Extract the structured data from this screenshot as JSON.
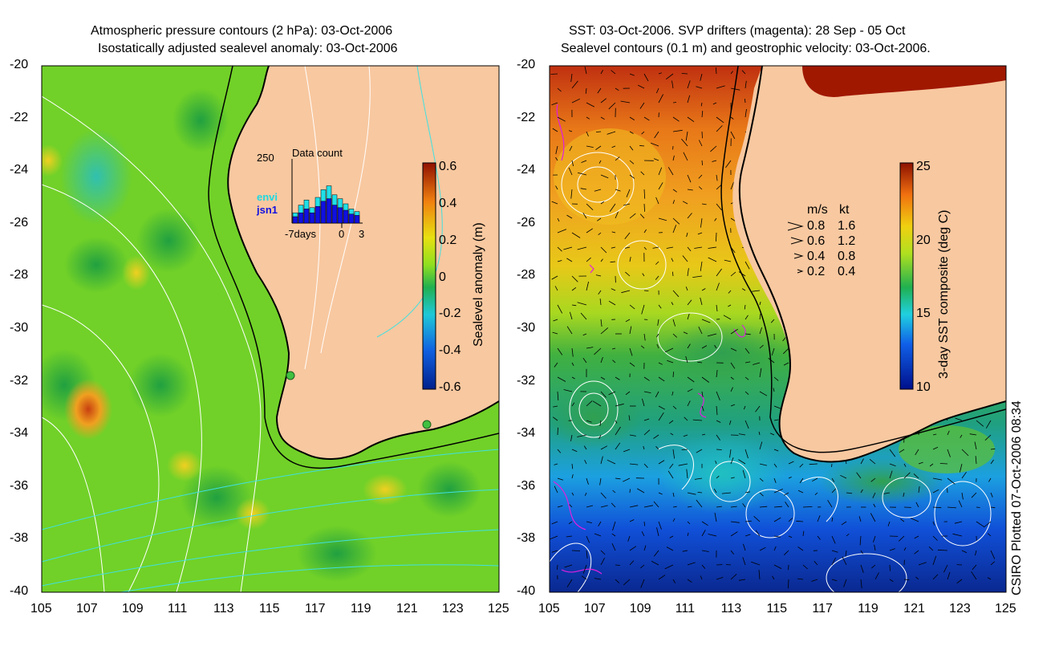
{
  "chart_data": [
    {
      "type": "heatmap",
      "title_line1": "Atmospheric pressure contours (2 hPa): 03-Oct-2006",
      "title_line2": "Isostatically adjusted sealevel anomaly: 03-Oct-2006",
      "xlim": [
        105,
        125
      ],
      "ylim": [
        -40,
        -20
      ],
      "x_ticks": [
        "105",
        "107",
        "109",
        "111",
        "113",
        "115",
        "117",
        "119",
        "121",
        "123",
        "125"
      ],
      "y_ticks": [
        "-20",
        "-22",
        "-24",
        "-26",
        "-28",
        "-30",
        "-32",
        "-34",
        "-36",
        "-38",
        "-40"
      ],
      "colorbar": {
        "label": "Sealevel anomaly (m)",
        "ticks": [
          "0.6",
          "0.4",
          "0.2",
          "0",
          "-0.2",
          "-0.4",
          "-0.6"
        ],
        "range": [
          -0.6,
          0.6
        ]
      },
      "inset": {
        "title": "Data count",
        "ymax_label": "250",
        "xaxis_labels": [
          "-7days",
          "0",
          "3"
        ],
        "legend": [
          {
            "name": "envi",
            "color": "#20e0e8"
          },
          {
            "name": "jsn1",
            "color": "#1010e0"
          }
        ],
        "bars_total": [
          40,
          70,
          90,
          60,
          100,
          130,
          145,
          110,
          95,
          75,
          55,
          45
        ],
        "bars_jsn1": [
          25,
          40,
          55,
          40,
          65,
          85,
          95,
          70,
          60,
          50,
          35,
          30
        ],
        "bar_max": 250
      },
      "stations": [
        {
          "lon": 115.8,
          "lat": -31.8
        },
        {
          "lon": 121.9,
          "lat": -33.9
        }
      ]
    },
    {
      "type": "heatmap",
      "title_line1": "SST: 03-Oct-2006. SVP drifters (magenta): 28 Sep - 05 Oct",
      "title_line2": "Sealevel contours (0.1 m) and geostrophic velocity: 03-Oct-2006.",
      "xlim": [
        105,
        125
      ],
      "ylim": [
        -40,
        -20
      ],
      "x_ticks": [
        "105",
        "107",
        "109",
        "111",
        "113",
        "115",
        "117",
        "119",
        "121",
        "123",
        "125"
      ],
      "y_ticks": [
        "-20",
        "-22",
        "-24",
        "-26",
        "-28",
        "-30",
        "-32",
        "-34",
        "-36",
        "-38",
        "-40"
      ],
      "colorbar": {
        "label": "3-day SST composite (deg C)",
        "ticks": [
          "25",
          "20",
          "15",
          "10"
        ],
        "range": [
          10,
          25
        ]
      },
      "velocity_key": {
        "header_ms": "m/s",
        "header_kt": "kt",
        "rows": [
          {
            "ms": "0.8",
            "kt": "1.6"
          },
          {
            "ms": "0.6",
            "kt": "1.2"
          },
          {
            "ms": "0.4",
            "kt": "0.8"
          },
          {
            "ms": "0.2",
            "kt": "0.4"
          }
        ]
      }
    }
  ],
  "credit": "CSIRO Plotted 07-Oct-2006 08:34",
  "colors": {
    "land": "#f8c8a0",
    "coast": "#000000",
    "contour_white": "#ffffff",
    "contour_cyan": "#40e0e0",
    "drifter": "#e020e0"
  }
}
